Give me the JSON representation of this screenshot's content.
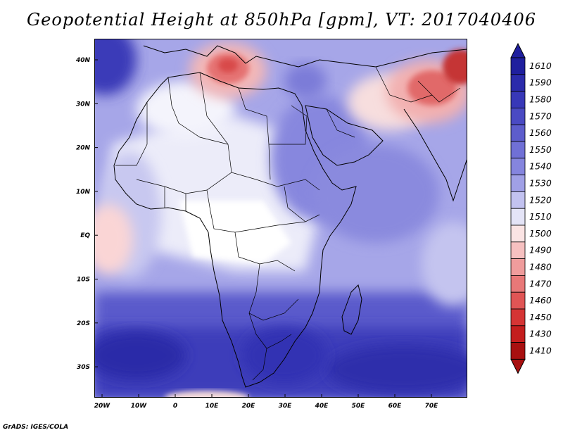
{
  "title": "Geopotential Height at 850hPa [gpm], VT: 2017040406",
  "credit": "GrADS: IGES/COLA",
  "map": {
    "lat_labels": [
      "40N",
      "30N",
      "20N",
      "10N",
      "EQ",
      "10S",
      "20S",
      "30S"
    ],
    "lon_labels": [
      "20W",
      "10W",
      "0",
      "10E",
      "20E",
      "30E",
      "40E",
      "50E",
      "60E",
      "70E"
    ],
    "extent": {
      "lon_min": -22,
      "lon_max": 80,
      "lat_min": -37,
      "lat_max": 45
    }
  },
  "colorbar": {
    "levels": [
      "1610",
      "1590",
      "1580",
      "1570",
      "1560",
      "1550",
      "1540",
      "1530",
      "1520",
      "1510",
      "1500",
      "1490",
      "1480",
      "1470",
      "1460",
      "1450",
      "1430",
      "1410"
    ],
    "colors": [
      "#1f1f9e",
      "#2b2bab",
      "#3838b8",
      "#4a4ac3",
      "#5d5dcc",
      "#7070d6",
      "#8585de",
      "#a0a0e6",
      "#c2c2f0",
      "#e4e4f7",
      "#fbe4e4",
      "#f6c0c0",
      "#ef9c9c",
      "#e87878",
      "#e05555",
      "#d53535",
      "#c41e1e",
      "#a81010"
    ]
  }
}
